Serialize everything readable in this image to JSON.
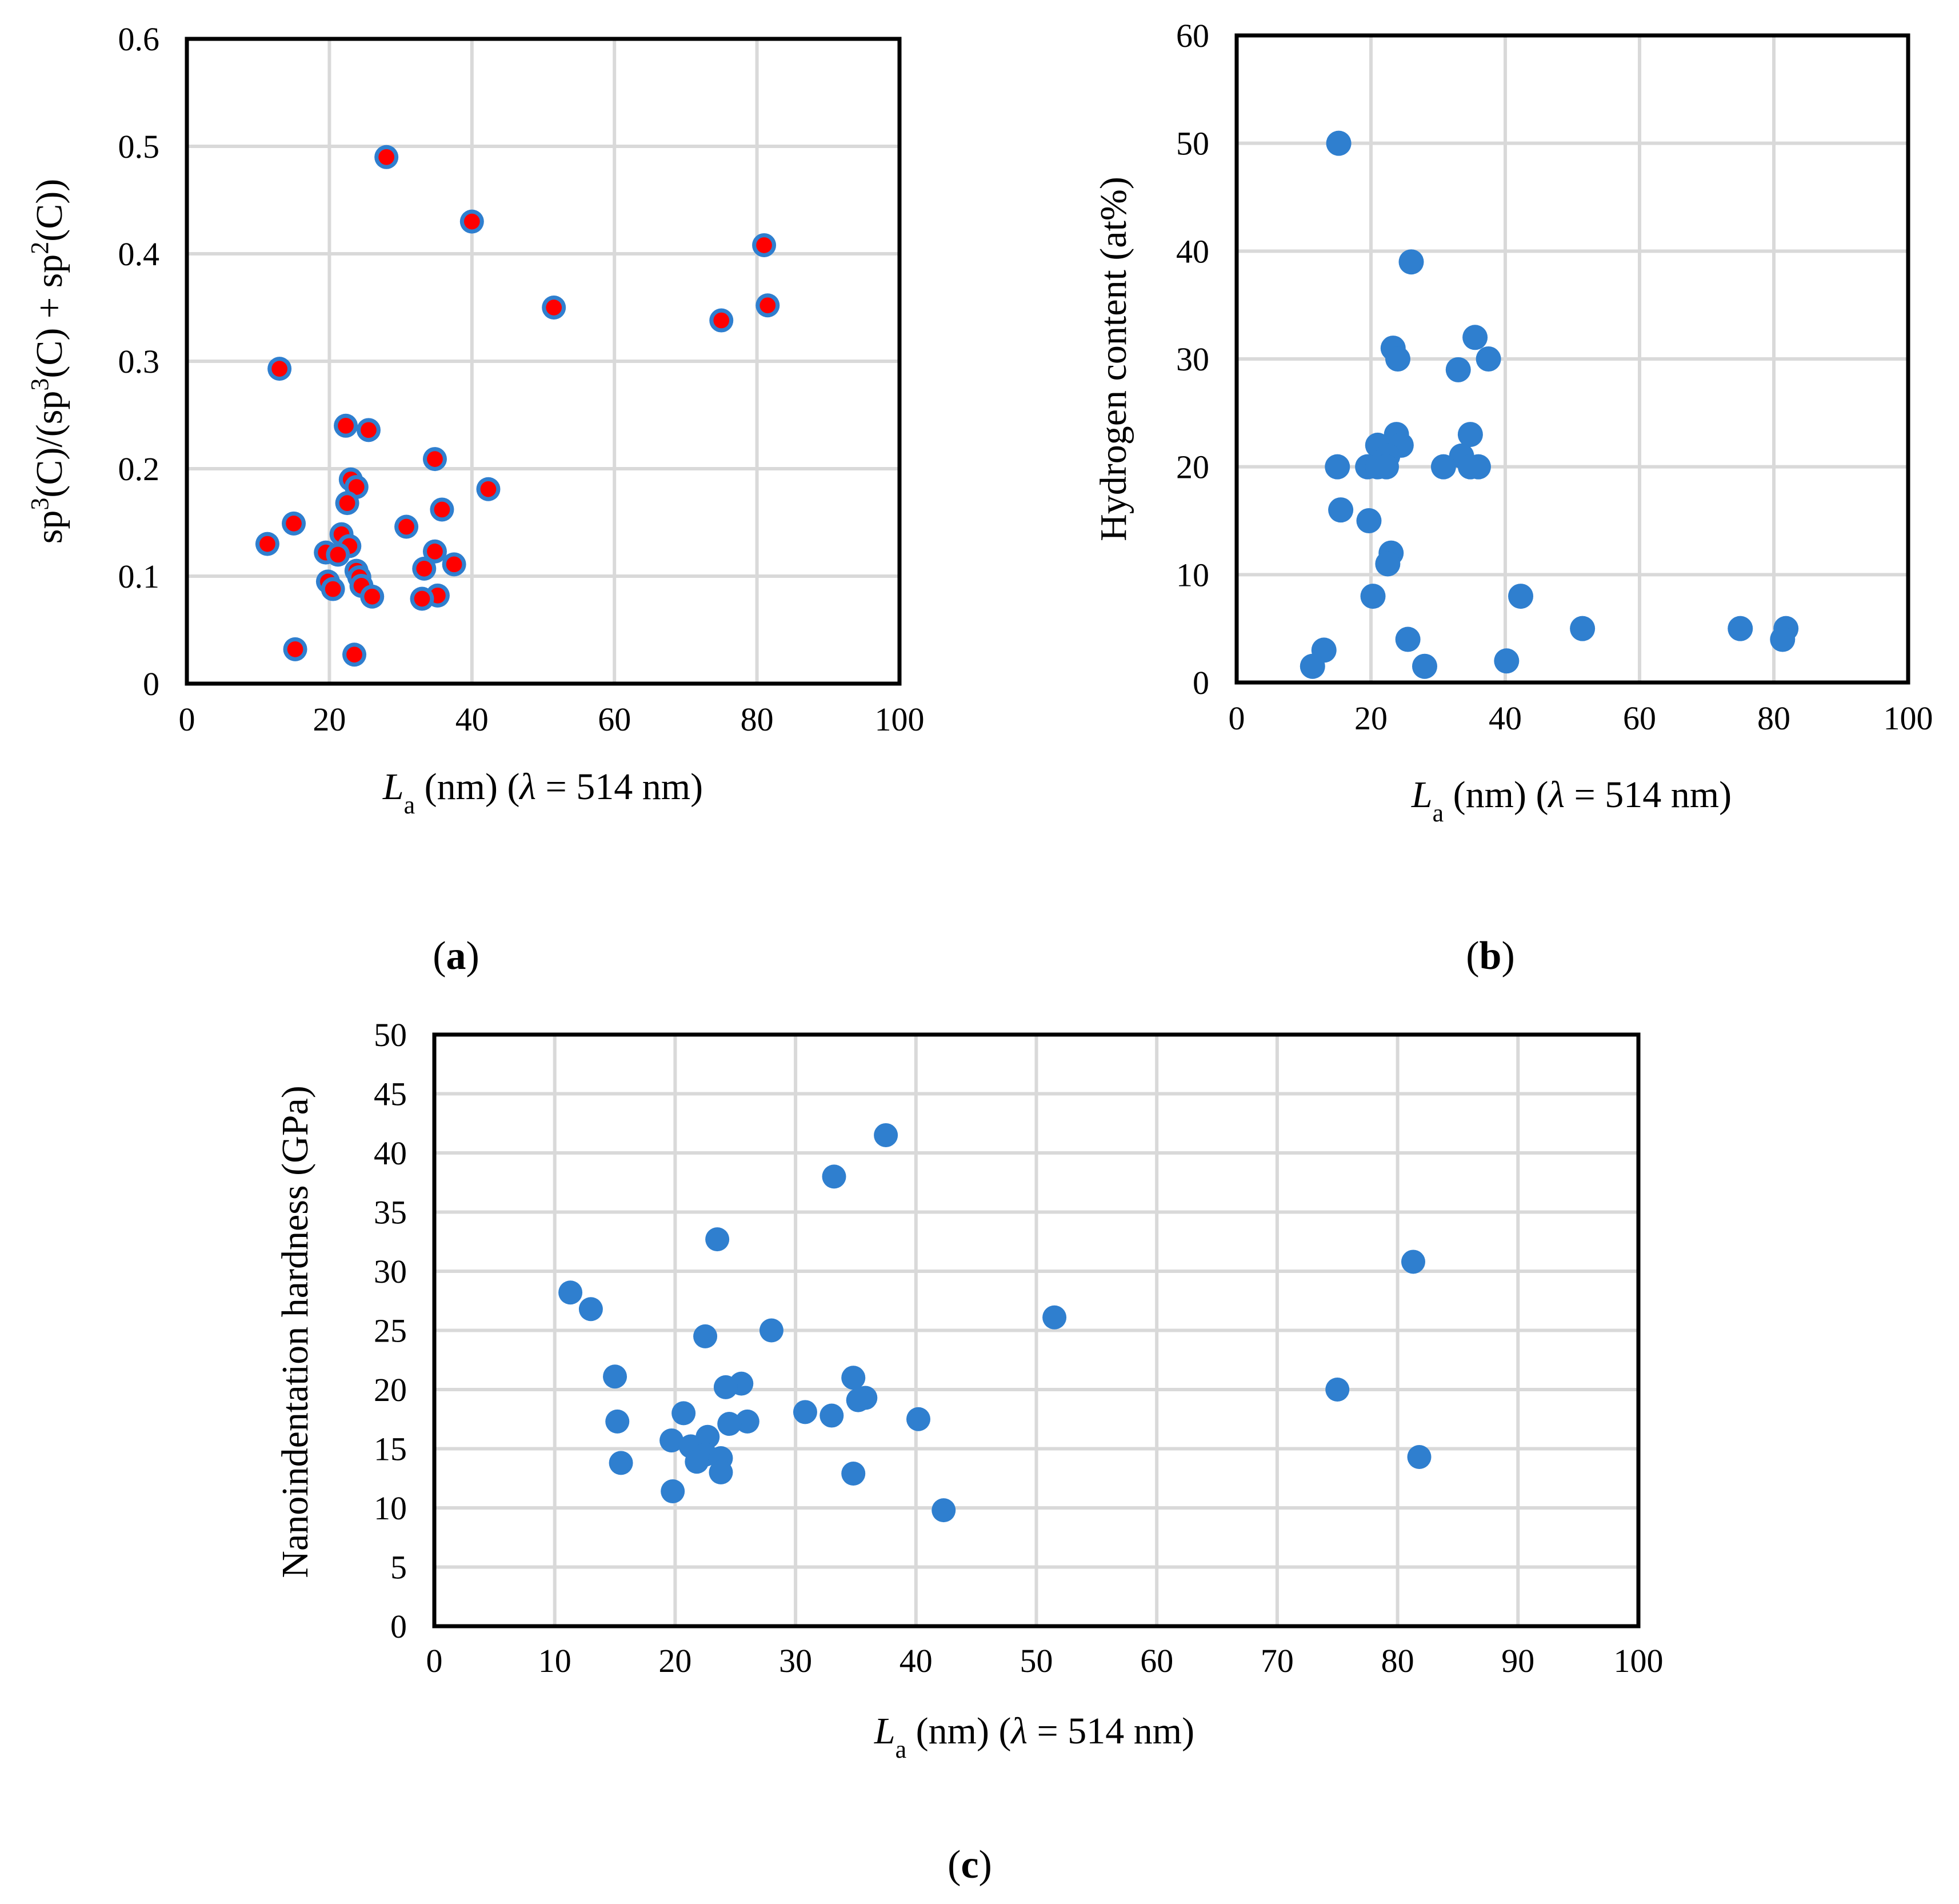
{
  "colors": {
    "marker_blue": "#2f7fcf",
    "marker_red": "#ff0000",
    "grid": "#d9d9d9",
    "axis": "#000000"
  },
  "chart_data": [
    {
      "id": "a",
      "type": "scatter",
      "panel_label": "a",
      "title": "",
      "xlabel": {
        "symbol": "L",
        "sub": "a",
        "rest": " (nm) (",
        "lambda": "λ",
        "tail": " = 514 nm)"
      },
      "ylabel": {
        "p1": "sp",
        "s1": "3",
        "p2": "(C)/(sp",
        "s2": "3",
        "p3": "(C) + sp",
        "s3": "2",
        "p4": "(C))"
      },
      "xlim": [
        0,
        100
      ],
      "ylim": [
        0,
        0.6
      ],
      "xticks": [
        "0",
        "20",
        "40",
        "60",
        "80",
        "100"
      ],
      "yticks": [
        "0",
        "0.1",
        "0.2",
        "0.3",
        "0.4",
        "0.5",
        "0.6"
      ],
      "grid": true,
      "marker": "blue-outlined-red-dot",
      "points": [
        [
          28.0,
          0.49
        ],
        [
          40.0,
          0.43
        ],
        [
          81.0,
          0.408
        ],
        [
          51.5,
          0.35
        ],
        [
          81.5,
          0.352
        ],
        [
          75.0,
          0.338
        ],
        [
          13.0,
          0.293
        ],
        [
          22.3,
          0.24
        ],
        [
          25.5,
          0.236
        ],
        [
          34.8,
          0.209
        ],
        [
          23.0,
          0.19
        ],
        [
          23.8,
          0.183
        ],
        [
          42.3,
          0.181
        ],
        [
          22.5,
          0.168
        ],
        [
          35.8,
          0.162
        ],
        [
          15.0,
          0.149
        ],
        [
          30.8,
          0.146
        ],
        [
          21.7,
          0.139
        ],
        [
          11.3,
          0.13
        ],
        [
          22.8,
          0.128
        ],
        [
          19.5,
          0.122
        ],
        [
          34.8,
          0.123
        ],
        [
          21.2,
          0.12
        ],
        [
          37.5,
          0.111
        ],
        [
          33.3,
          0.107
        ],
        [
          23.8,
          0.105
        ],
        [
          24.2,
          0.099
        ],
        [
          19.8,
          0.095
        ],
        [
          24.5,
          0.091
        ],
        [
          20.5,
          0.088
        ],
        [
          26.0,
          0.081
        ],
        [
          35.2,
          0.082
        ],
        [
          33.0,
          0.079
        ],
        [
          15.2,
          0.032
        ],
        [
          23.5,
          0.027
        ]
      ]
    },
    {
      "id": "b",
      "type": "scatter",
      "panel_label": "b",
      "title": "",
      "xlabel": {
        "symbol": "L",
        "sub": "a",
        "rest": " (nm) (",
        "lambda": "λ",
        "tail": " = 514 nm)"
      },
      "ylabel": {
        "text": "Hydrogen content (at%)"
      },
      "xlim": [
        0,
        100
      ],
      "ylim": [
        0,
        60
      ],
      "xticks": [
        "0",
        "20",
        "40",
        "60",
        "80",
        "100"
      ],
      "yticks": [
        "0",
        "10",
        "20",
        "30",
        "40",
        "50",
        "60"
      ],
      "grid": true,
      "marker": "blue-dot",
      "points": [
        [
          15.2,
          50
        ],
        [
          26.0,
          39
        ],
        [
          35.5,
          32
        ],
        [
          23.3,
          31
        ],
        [
          24.0,
          30
        ],
        [
          37.5,
          30
        ],
        [
          33.0,
          29
        ],
        [
          23.8,
          23
        ],
        [
          34.8,
          23
        ],
        [
          21.0,
          22
        ],
        [
          24.5,
          22
        ],
        [
          22.5,
          21
        ],
        [
          33.5,
          21
        ],
        [
          15.0,
          20
        ],
        [
          19.5,
          20
        ],
        [
          21.0,
          20
        ],
        [
          22.3,
          20
        ],
        [
          30.8,
          20
        ],
        [
          34.8,
          20
        ],
        [
          36.0,
          20
        ],
        [
          15.5,
          16
        ],
        [
          19.7,
          15
        ],
        [
          23.0,
          12
        ],
        [
          22.5,
          11
        ],
        [
          20.3,
          8
        ],
        [
          42.3,
          8
        ],
        [
          51.5,
          5
        ],
        [
          75.0,
          5
        ],
        [
          81.8,
          5
        ],
        [
          25.5,
          4
        ],
        [
          81.3,
          4
        ],
        [
          13.0,
          3
        ],
        [
          40.2,
          2
        ],
        [
          11.3,
          1.5
        ],
        [
          28.0,
          1.5
        ]
      ]
    },
    {
      "id": "c",
      "type": "scatter",
      "panel_label": "c",
      "title": "",
      "xlabel": {
        "symbol": "L",
        "sub": "a",
        "rest": " (nm) (",
        "lambda": "λ",
        "tail": " = 514 nm)"
      },
      "ylabel": {
        "text": "Nanoindentation hardness (GPa)"
      },
      "xlim": [
        0,
        100
      ],
      "ylim": [
        0,
        50
      ],
      "xticks": [
        "0",
        "10",
        "20",
        "30",
        "40",
        "50",
        "60",
        "70",
        "80",
        "90",
        "100"
      ],
      "yticks": [
        "0",
        "5",
        "10",
        "15",
        "20",
        "25",
        "30",
        "35",
        "40",
        "45",
        "50"
      ],
      "grid": true,
      "marker": "blue-dot",
      "points": [
        [
          37.5,
          41.5
        ],
        [
          33.2,
          38.0
        ],
        [
          23.5,
          32.7
        ],
        [
          81.3,
          30.8
        ],
        [
          11.3,
          28.2
        ],
        [
          13.0,
          26.8
        ],
        [
          51.5,
          26.1
        ],
        [
          28.0,
          25.0
        ],
        [
          22.5,
          24.5
        ],
        [
          15.0,
          21.1
        ],
        [
          34.8,
          21.0
        ],
        [
          25.5,
          20.5
        ],
        [
          24.2,
          20.2
        ],
        [
          75.0,
          20.0
        ],
        [
          35.8,
          19.3
        ],
        [
          35.2,
          19.1
        ],
        [
          30.8,
          18.1
        ],
        [
          20.7,
          18.0
        ],
        [
          33.0,
          17.8
        ],
        [
          40.2,
          17.5
        ],
        [
          15.2,
          17.3
        ],
        [
          26.0,
          17.3
        ],
        [
          24.5,
          17.1
        ],
        [
          22.7,
          16.0
        ],
        [
          19.7,
          15.7
        ],
        [
          21.3,
          15.2
        ],
        [
          22.5,
          14.5
        ],
        [
          81.8,
          14.3
        ],
        [
          23.8,
          14.2
        ],
        [
          21.8,
          13.9
        ],
        [
          15.5,
          13.8
        ],
        [
          23.8,
          13.0
        ],
        [
          34.8,
          12.9
        ],
        [
          19.8,
          11.4
        ],
        [
          42.3,
          9.8
        ]
      ]
    }
  ]
}
